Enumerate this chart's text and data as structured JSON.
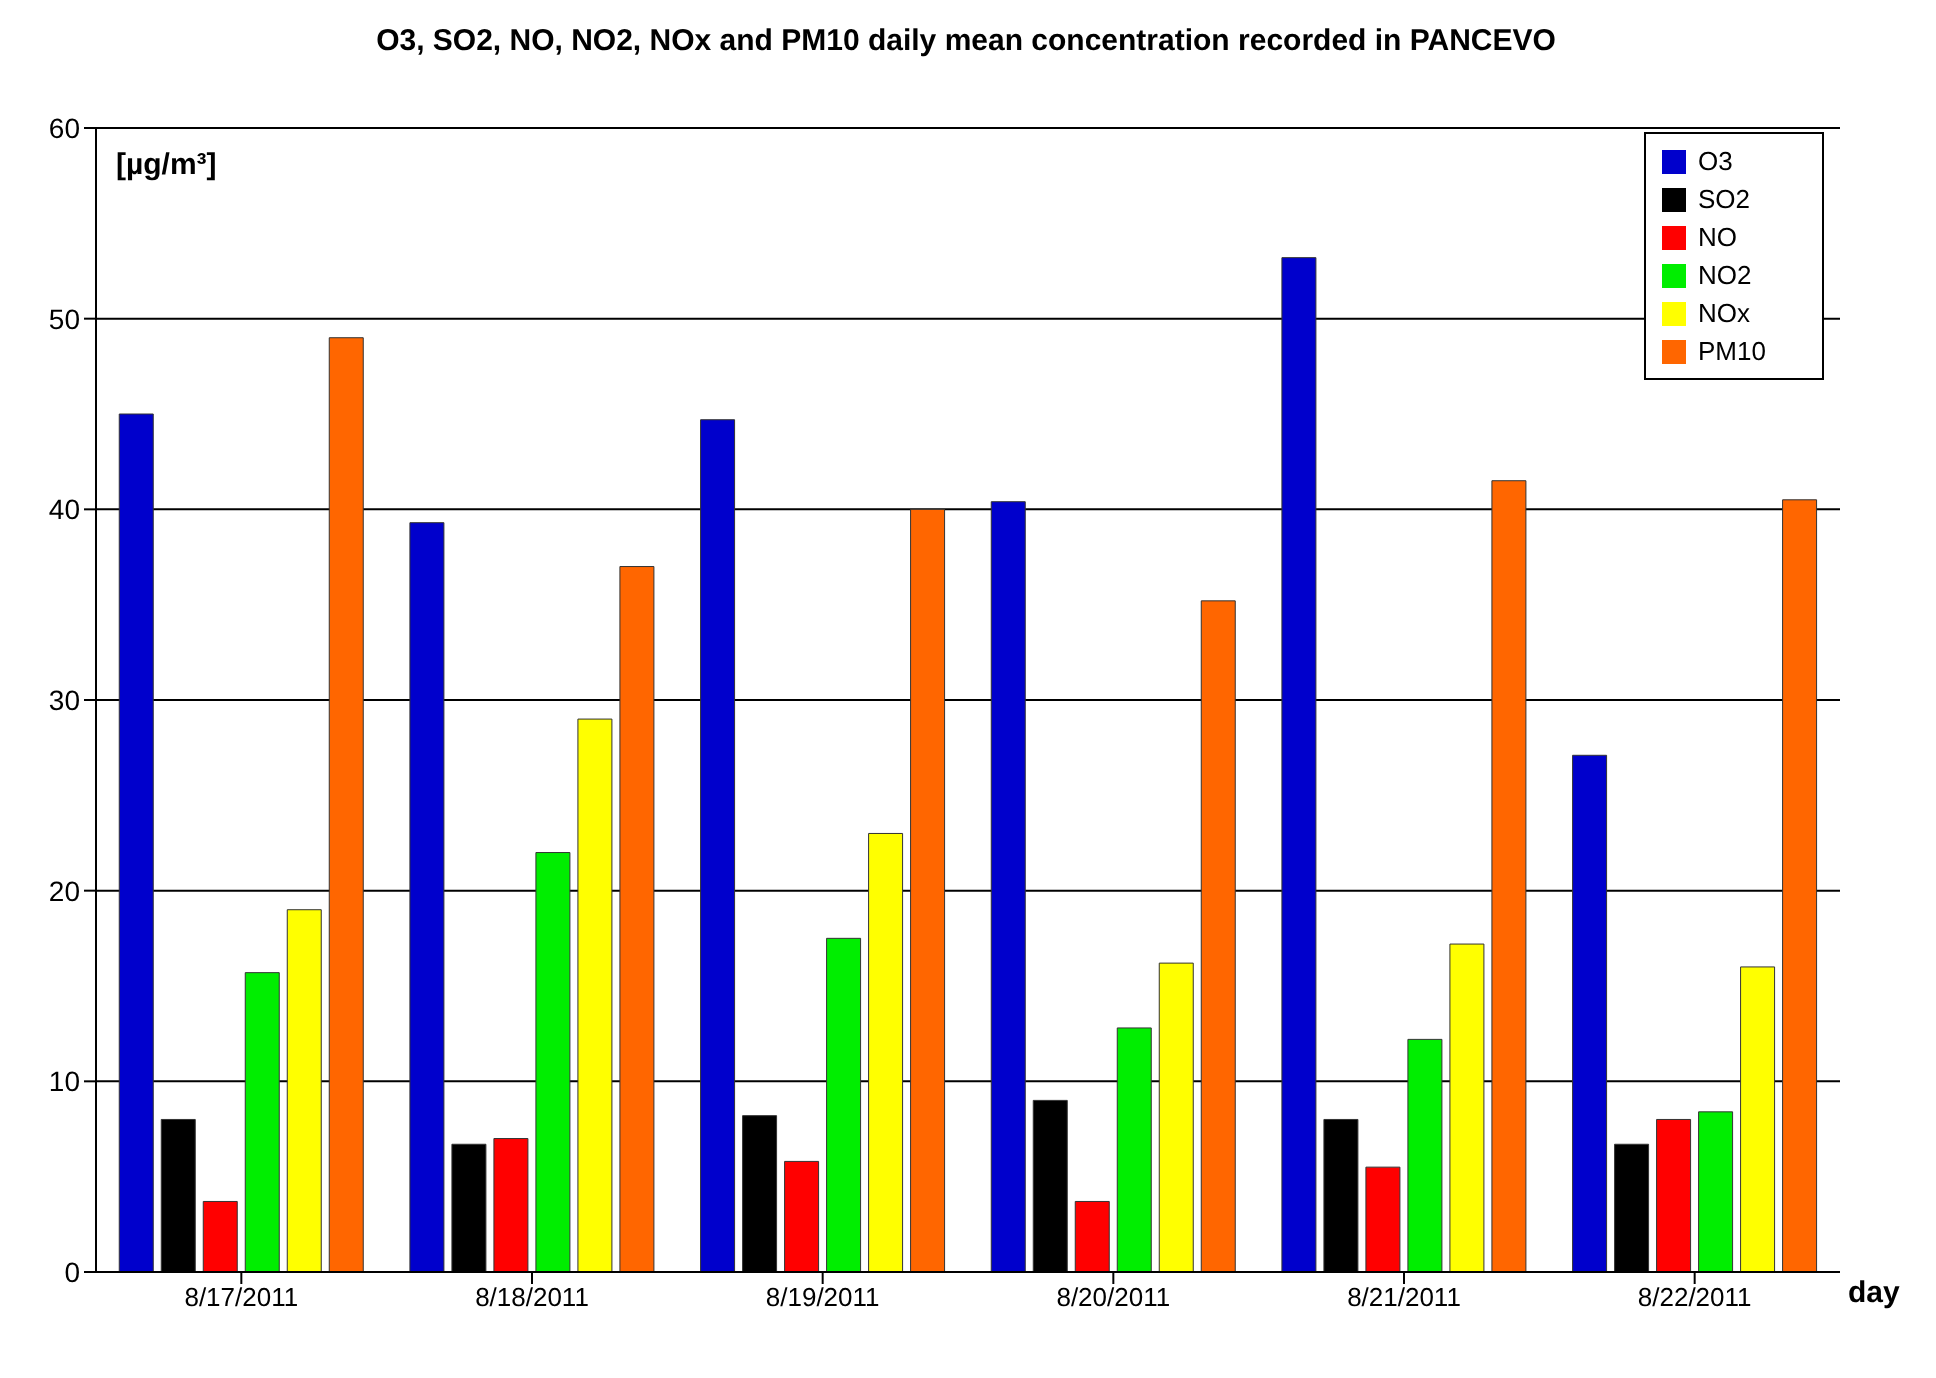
{
  "chart_data": {
    "type": "bar",
    "title": "O3, SO2, NO, NO2, NOx and PM10 daily  mean concentration recorded in PANCEVO",
    "ylabel": "[µg/m³]",
    "xlabel": "day",
    "categories": [
      "8/17/2011",
      "8/18/2011",
      "8/19/2011",
      "8/20/2011",
      "8/21/2011",
      "8/22/2011"
    ],
    "series": [
      {
        "name": "O3",
        "color": "#0000cc",
        "values": [
          45,
          39.3,
          44.7,
          40.4,
          53.2,
          27.1
        ]
      },
      {
        "name": "SO2",
        "color": "#000000",
        "values": [
          8,
          6.7,
          8.2,
          9,
          8,
          6.7
        ]
      },
      {
        "name": "NO",
        "color": "#ff0000",
        "values": [
          3.7,
          7,
          5.8,
          3.7,
          5.5,
          8
        ]
      },
      {
        "name": "NO2",
        "color": "#00ee00",
        "values": [
          15.7,
          22,
          17.5,
          12.8,
          12.2,
          8.4
        ]
      },
      {
        "name": "NOx",
        "color": "#ffff00",
        "values": [
          19,
          29,
          23,
          16.2,
          17.2,
          16
        ]
      },
      {
        "name": "PM10",
        "color": "#ff6600",
        "values": [
          49,
          37,
          40,
          35.2,
          41.5,
          40.5
        ]
      }
    ],
    "ylim": [
      0,
      60
    ],
    "yticks": [
      0,
      10,
      20,
      30,
      40,
      50,
      60
    ],
    "grid": "y",
    "legend": "top right"
  }
}
